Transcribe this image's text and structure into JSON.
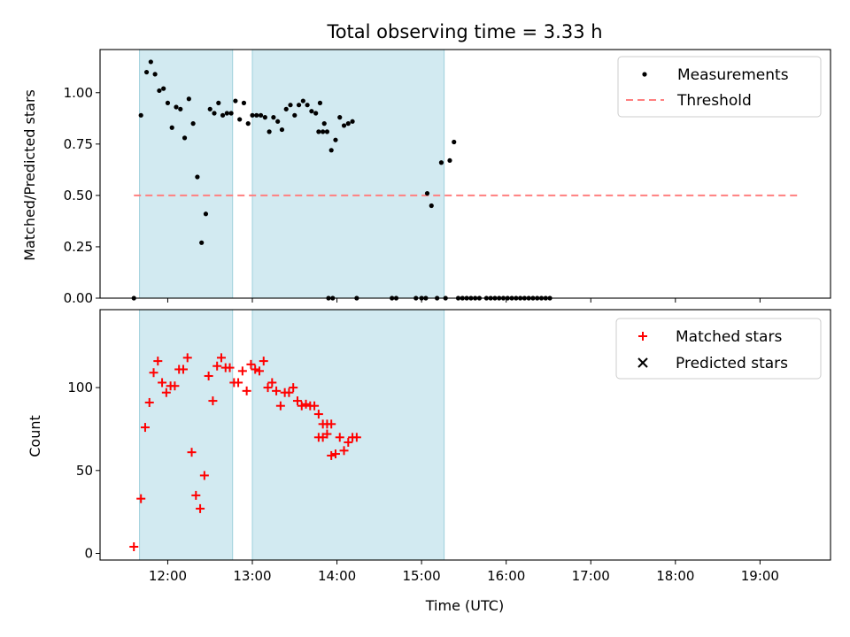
{
  "figure": {
    "title": "Total observing time = 3.33 h",
    "xlabel": "Time (UTC)",
    "xtick_labels": [
      "12:00",
      "13:00",
      "14:00",
      "15:00",
      "16:00",
      "17:00",
      "18:00",
      "19:00"
    ],
    "xlim": [
      "11:12",
      "19:50"
    ]
  },
  "chart_data": [
    {
      "type": "scatter",
      "ylabel": "Matched/Predicted stars",
      "ylim": [
        0,
        1.21
      ],
      "yticks": [
        0,
        0.25,
        0.5,
        0.75,
        1.0
      ],
      "ytick_labels": [
        "0.00",
        "0.25",
        "0.50",
        "0.75",
        "1.00"
      ],
      "legend_position": "top-right",
      "shaded_intervals": [
        [
          "11:40",
          "12:46"
        ],
        [
          "13:00",
          "15:16"
        ]
      ],
      "shade_color": "#add8e6",
      "threshold": {
        "name": "Threshold",
        "y": 0.5,
        "x_range": [
          "11:36",
          "19:27"
        ],
        "color": "#ff7f7f"
      },
      "series": [
        {
          "name": "Measurements",
          "marker": "dot",
          "color": "#000000",
          "points": [
            [
              "11:36",
              0
            ],
            [
              "11:41",
              0.89
            ],
            [
              "11:45",
              1.1
            ],
            [
              "11:48",
              1.15
            ],
            [
              "11:51",
              1.09
            ],
            [
              "11:54",
              1.01
            ],
            [
              "11:57",
              1.02
            ],
            [
              "12:00",
              0.95
            ],
            [
              "12:03",
              0.83
            ],
            [
              "12:06",
              0.93
            ],
            [
              "12:09",
              0.92
            ],
            [
              "12:12",
              0.78
            ],
            [
              "12:15",
              0.97
            ],
            [
              "12:18",
              0.85
            ],
            [
              "12:21",
              0.59
            ],
            [
              "12:24",
              0.27
            ],
            [
              "12:27",
              0.41
            ],
            [
              "12:30",
              0.92
            ],
            [
              "12:33",
              0.9
            ],
            [
              "12:36",
              0.95
            ],
            [
              "12:39",
              0.89
            ],
            [
              "12:42",
              0.9
            ],
            [
              "12:45",
              0.9
            ],
            [
              "12:48",
              0.96
            ],
            [
              "12:51",
              0.87
            ],
            [
              "12:54",
              0.95
            ],
            [
              "12:57",
              0.85
            ],
            [
              "13:00",
              0.89
            ],
            [
              "13:03",
              0.89
            ],
            [
              "13:06",
              0.89
            ],
            [
              "13:09",
              0.88
            ],
            [
              "13:12",
              0.81
            ],
            [
              "13:15",
              0.88
            ],
            [
              "13:18",
              0.86
            ],
            [
              "13:21",
              0.82
            ],
            [
              "13:24",
              0.92
            ],
            [
              "13:27",
              0.94
            ],
            [
              "13:30",
              0.89
            ],
            [
              "13:33",
              0.94
            ],
            [
              "13:36",
              0.96
            ],
            [
              "13:39",
              0.94
            ],
            [
              "13:42",
              0.91
            ],
            [
              "13:45",
              0.9
            ],
            [
              "13:48",
              0.95
            ],
            [
              "13:51",
              0.85
            ],
            [
              "13:54",
              0.0
            ],
            [
              "13:57",
              0.0
            ],
            [
              "13:47",
              0.81
            ],
            [
              "13:50",
              0.81
            ],
            [
              "13:53",
              0.81
            ],
            [
              "13:56",
              0.72
            ],
            [
              "13:59",
              0.77
            ],
            [
              "14:02",
              0.88
            ],
            [
              "14:05",
              0.84
            ],
            [
              "14:08",
              0.85
            ],
            [
              "14:11",
              0.86
            ],
            [
              "14:14",
              0.0
            ],
            [
              "14:39",
              0.0
            ],
            [
              "14:42",
              0.0
            ],
            [
              "14:56",
              0.0
            ],
            [
              "15:00",
              0.0
            ],
            [
              "15:03",
              0.0
            ],
            [
              "15:04",
              0.51
            ],
            [
              "15:07",
              0.45
            ],
            [
              "15:11",
              0.0
            ],
            [
              "15:14",
              0.66
            ],
            [
              "15:17",
              0.0
            ],
            [
              "15:20",
              0.67
            ],
            [
              "15:23",
              0.76
            ],
            [
              "15:26",
              0.0
            ],
            [
              "15:29",
              0.0
            ],
            [
              "15:32",
              0.0
            ],
            [
              "15:35",
              0.0
            ],
            [
              "15:38",
              0.0
            ],
            [
              "15:41",
              0.0
            ],
            [
              "15:46",
              0.0
            ],
            [
              "15:49",
              0.0
            ],
            [
              "15:52",
              0.0
            ],
            [
              "15:55",
              0.0
            ],
            [
              "15:58",
              0.0
            ],
            [
              "16:01",
              0.0
            ],
            [
              "16:04",
              0.0
            ],
            [
              "16:07",
              0.0
            ],
            [
              "16:10",
              0.0
            ],
            [
              "16:13",
              0.0
            ],
            [
              "16:16",
              0.0
            ],
            [
              "16:19",
              0.0
            ],
            [
              "16:22",
              0.0
            ],
            [
              "16:25",
              0.0
            ],
            [
              "16:28",
              0.0
            ],
            [
              "16:31",
              0.0
            ]
          ]
        }
      ]
    },
    {
      "type": "scatter",
      "ylabel": "Count",
      "ylim": [
        -4,
        147
      ],
      "yticks": [
        0,
        50,
        100
      ],
      "ytick_labels": [
        "0",
        "50",
        "100"
      ],
      "legend_position": "top-right",
      "shaded_intervals": [
        [
          "11:40",
          "12:46"
        ],
        [
          "13:00",
          "15:16"
        ]
      ],
      "shade_color": "#add8e6",
      "series": [
        {
          "name": "Matched stars",
          "marker": "plus",
          "color": "#ff0000",
          "points": []
        },
        {
          "name": "Predicted stars",
          "marker": "x",
          "color": "#000000",
          "points": []
        }
      ]
    }
  ]
}
